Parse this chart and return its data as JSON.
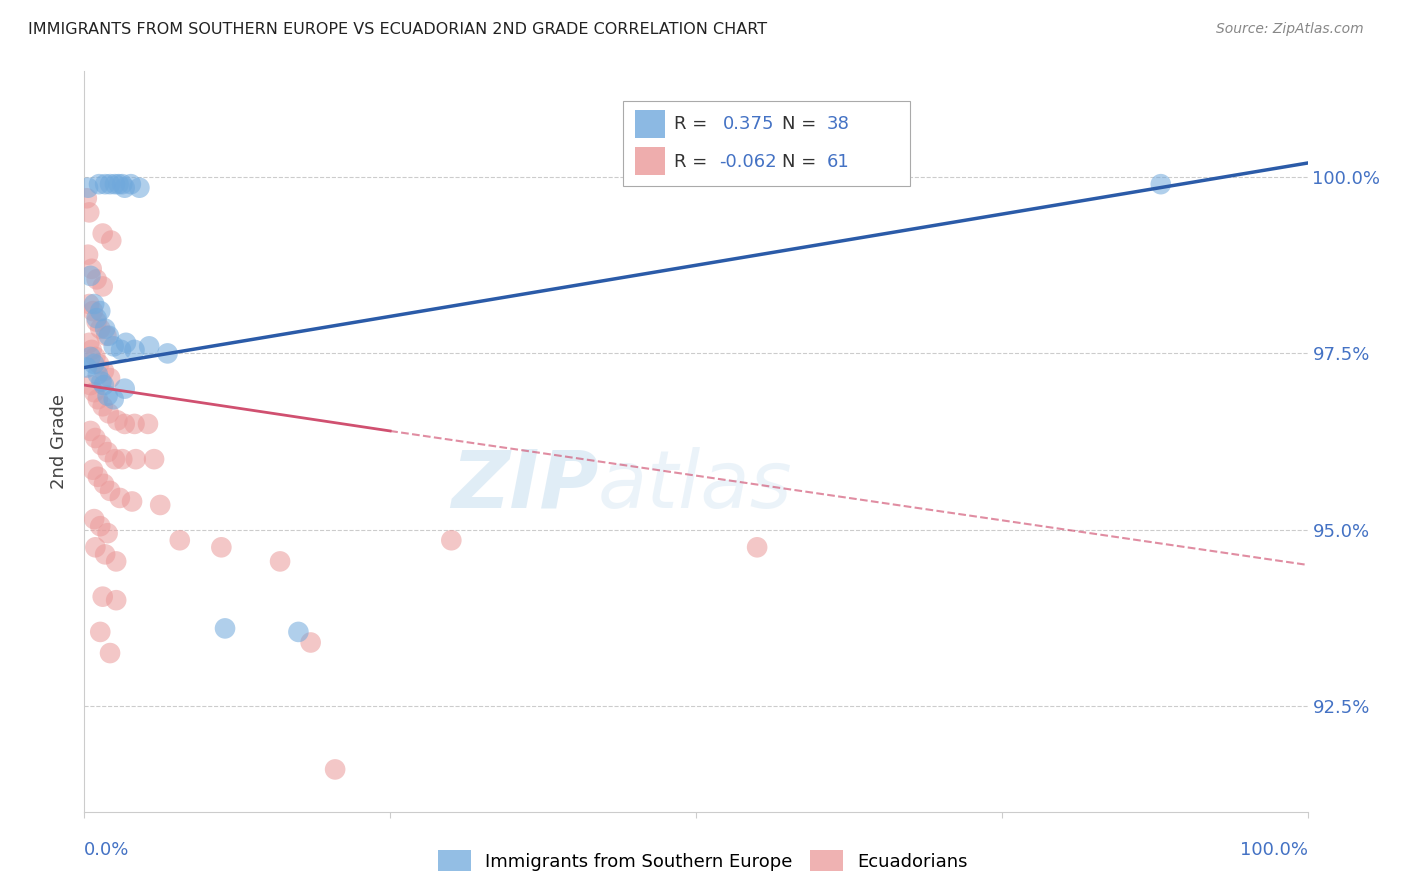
{
  "title": "IMMIGRANTS FROM SOUTHERN EUROPE VS ECUADORIAN 2ND GRADE CORRELATION CHART",
  "source": "Source: ZipAtlas.com",
  "ylabel": "2nd Grade",
  "y_min": 91.0,
  "y_max": 101.5,
  "x_min": 0.0,
  "x_max": 100.0,
  "blue_scatter": [
    [
      0.3,
      99.85
    ],
    [
      1.2,
      99.9
    ],
    [
      1.7,
      99.9
    ],
    [
      2.1,
      99.9
    ],
    [
      2.5,
      99.9
    ],
    [
      2.8,
      99.9
    ],
    [
      3.1,
      99.9
    ],
    [
      3.3,
      99.85
    ],
    [
      3.8,
      99.9
    ],
    [
      4.5,
      99.85
    ],
    [
      0.5,
      98.6
    ],
    [
      0.8,
      98.2
    ],
    [
      1.0,
      98.0
    ],
    [
      1.3,
      98.1
    ],
    [
      1.7,
      97.85
    ],
    [
      2.0,
      97.75
    ],
    [
      2.4,
      97.6
    ],
    [
      3.0,
      97.55
    ],
    [
      3.4,
      97.65
    ],
    [
      4.1,
      97.55
    ],
    [
      5.3,
      97.6
    ],
    [
      6.8,
      97.5
    ],
    [
      0.5,
      97.45
    ],
    [
      0.8,
      97.35
    ],
    [
      1.1,
      97.2
    ],
    [
      1.4,
      97.1
    ],
    [
      1.6,
      97.05
    ],
    [
      1.9,
      96.9
    ],
    [
      2.4,
      96.85
    ],
    [
      3.3,
      97.0
    ],
    [
      0.2,
      97.3
    ],
    [
      11.5,
      93.6
    ],
    [
      17.5,
      93.55
    ],
    [
      88.0,
      99.9
    ]
  ],
  "pink_scatter": [
    [
      0.2,
      99.7
    ],
    [
      0.4,
      99.5
    ],
    [
      1.5,
      99.2
    ],
    [
      2.2,
      99.1
    ],
    [
      0.3,
      98.9
    ],
    [
      0.6,
      98.7
    ],
    [
      1.0,
      98.55
    ],
    [
      1.5,
      98.45
    ],
    [
      0.4,
      98.2
    ],
    [
      0.7,
      98.1
    ],
    [
      1.0,
      97.95
    ],
    [
      1.3,
      97.85
    ],
    [
      1.8,
      97.75
    ],
    [
      0.4,
      97.65
    ],
    [
      0.6,
      97.55
    ],
    [
      0.9,
      97.45
    ],
    [
      1.2,
      97.35
    ],
    [
      1.6,
      97.25
    ],
    [
      2.1,
      97.15
    ],
    [
      0.5,
      97.05
    ],
    [
      0.8,
      96.95
    ],
    [
      1.1,
      96.85
    ],
    [
      1.5,
      96.75
    ],
    [
      2.0,
      96.65
    ],
    [
      2.7,
      96.55
    ],
    [
      3.3,
      96.5
    ],
    [
      4.1,
      96.5
    ],
    [
      5.2,
      96.5
    ],
    [
      0.5,
      96.4
    ],
    [
      0.9,
      96.3
    ],
    [
      1.4,
      96.2
    ],
    [
      1.9,
      96.1
    ],
    [
      2.5,
      96.0
    ],
    [
      3.1,
      96.0
    ],
    [
      4.2,
      96.0
    ],
    [
      5.7,
      96.0
    ],
    [
      0.7,
      95.85
    ],
    [
      1.1,
      95.75
    ],
    [
      1.6,
      95.65
    ],
    [
      2.1,
      95.55
    ],
    [
      2.9,
      95.45
    ],
    [
      3.9,
      95.4
    ],
    [
      6.2,
      95.35
    ],
    [
      0.8,
      95.15
    ],
    [
      1.3,
      95.05
    ],
    [
      1.9,
      94.95
    ],
    [
      7.8,
      94.85
    ],
    [
      0.9,
      94.75
    ],
    [
      1.7,
      94.65
    ],
    [
      2.6,
      94.55
    ],
    [
      11.2,
      94.75
    ],
    [
      1.5,
      94.05
    ],
    [
      2.6,
      94.0
    ],
    [
      16.0,
      94.55
    ],
    [
      1.3,
      93.55
    ],
    [
      2.1,
      93.25
    ],
    [
      18.5,
      93.4
    ],
    [
      20.5,
      91.6
    ],
    [
      30.0,
      94.85
    ],
    [
      55.0,
      94.75
    ]
  ],
  "blue_line": [
    [
      0,
      97.3
    ],
    [
      100,
      100.2
    ]
  ],
  "pink_line_solid": [
    [
      0,
      97.05
    ],
    [
      25,
      96.4
    ]
  ],
  "pink_line_dash": [
    [
      25,
      96.4
    ],
    [
      100,
      94.5
    ]
  ],
  "blue_color": "#6fa8dc",
  "pink_color": "#ea9999",
  "blue_line_color": "#2b5ba8",
  "pink_line_color": "#d05070",
  "bg_color": "#ffffff",
  "grid_color": "#cccccc",
  "watermark_zip": "ZIP",
  "watermark_atlas": "atlas",
  "ytick_vals": [
    100.0,
    97.5,
    95.0,
    92.5
  ],
  "ytick_labels": [
    "100.0%",
    "97.5%",
    "95.0%",
    "92.5%"
  ]
}
